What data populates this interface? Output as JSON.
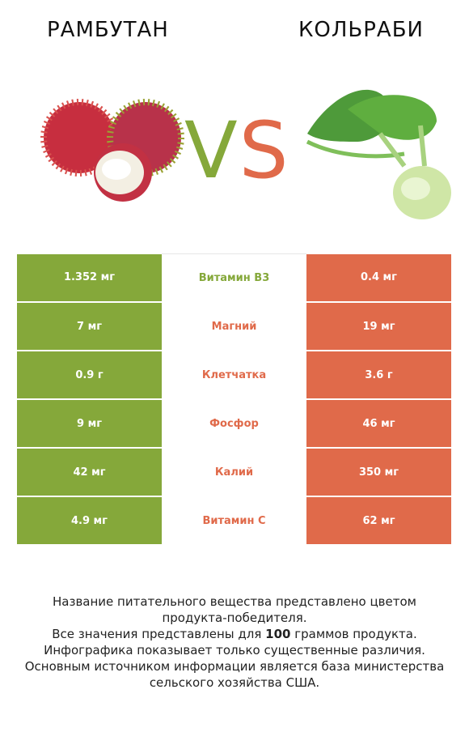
{
  "header": {
    "left_title": "РАМБУТАН",
    "right_title": "КОЛЬРАБИ",
    "vs_v": "V",
    "vs_s": "S"
  },
  "colors": {
    "left": "#85a83a",
    "right": "#e06a4a"
  },
  "rows": [
    {
      "left": "1.352 мг",
      "nutrient": "Витамин B3",
      "right": "0.4 мг",
      "winner": "left"
    },
    {
      "left": "7 мг",
      "nutrient": "Магний",
      "right": "19 мг",
      "winner": "right"
    },
    {
      "left": "0.9 г",
      "nutrient": "Клетчатка",
      "right": "3.6 г",
      "winner": "right"
    },
    {
      "left": "9 мг",
      "nutrient": "Фосфор",
      "right": "46 мг",
      "winner": "right"
    },
    {
      "left": "42 мг",
      "nutrient": "Калий",
      "right": "350 мг",
      "winner": "right"
    },
    {
      "left": "4.9 мг",
      "nutrient": "Витамин C",
      "right": "62 мг",
      "winner": "right"
    }
  ],
  "footer": {
    "line1": "Название питательного вещества представлено цветом",
    "line2": "продукта-победителя.",
    "line3_pre": "Все значения представлены для ",
    "line3_bold": "100",
    "line3_post": " граммов продукта.",
    "line4": "Инфографика показывает только существенные различия.",
    "line5": "Основным источником информации является база министерства",
    "line6": "сельского хозяйства США."
  }
}
